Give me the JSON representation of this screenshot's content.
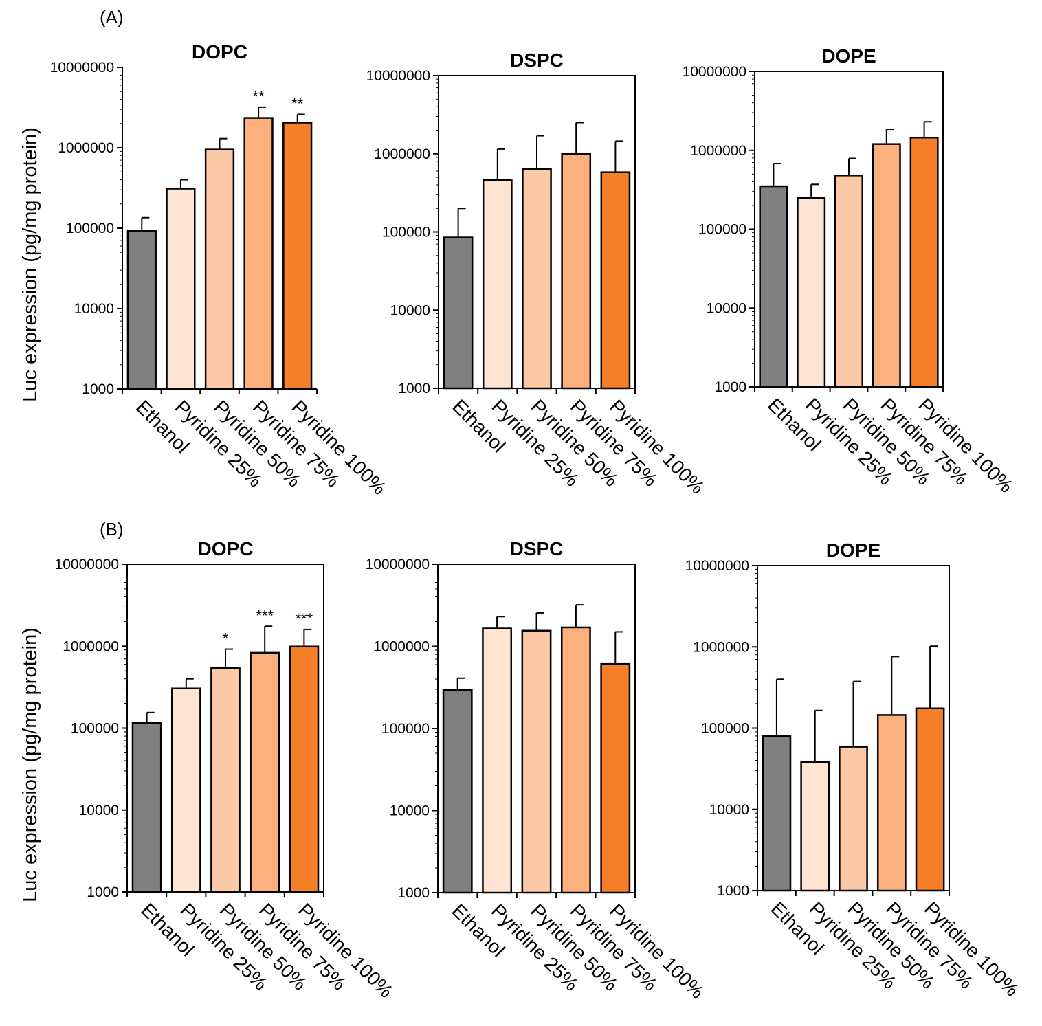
{
  "panels": [
    {
      "label": "(A)",
      "ylabel": "Luc expression (pg/mg protein)",
      "charts": [
        {
          "type": "bar",
          "title": "DOPC",
          "yscale": "log",
          "ylim": [
            1000,
            10000000
          ],
          "yticks": [
            "1000",
            "10000",
            "100000",
            "1000000",
            "10000000"
          ],
          "categories": [
            "Ethanol",
            "Pyridine 25%",
            "Pyridine 50%",
            "Pyridine 75%",
            "Pyridine 100%"
          ],
          "values": [
            92000,
            310000,
            950000,
            2350000,
            2050000
          ],
          "error_upper": [
            135000,
            400000,
            1300000,
            3200000,
            2600000
          ],
          "significance": [
            "",
            "",
            "",
            "**",
            "**"
          ],
          "box": "left-bottom",
          "colors": [
            "#808080",
            "#fde4d3",
            "#fcc9a6",
            "#fbb07e",
            "#f57f28"
          ]
        },
        {
          "type": "bar",
          "title": "DSPC",
          "yscale": "log",
          "ylim": [
            1000,
            10000000
          ],
          "yticks": [
            "1000",
            "10000",
            "100000",
            "1000000",
            "10000000"
          ],
          "categories": [
            "Ethanol",
            "Pyridine 25%",
            "Pyridine 50%",
            "Pyridine 75%",
            "Pyridine 100%"
          ],
          "values": [
            85000,
            460000,
            640000,
            990000,
            580000
          ],
          "error_upper": [
            200000,
            1150000,
            1700000,
            2500000,
            1450000
          ],
          "significance": [
            "",
            "",
            "",
            "",
            ""
          ],
          "box": "full",
          "colors": [
            "#808080",
            "#fde4d3",
            "#fcc9a6",
            "#fbb07e",
            "#f57f28"
          ]
        },
        {
          "type": "bar",
          "title": "DOPE",
          "yscale": "log",
          "ylim": [
            1000,
            10000000
          ],
          "yticks": [
            "1000",
            "10000",
            "100000",
            "1000000",
            "10000000"
          ],
          "categories": [
            "Ethanol",
            "Pyridine 25%",
            "Pyridine 50%",
            "Pyridine 75%",
            "Pyridine 100%"
          ],
          "values": [
            350000,
            250000,
            480000,
            1200000,
            1450000
          ],
          "error_upper": [
            680000,
            370000,
            790000,
            1850000,
            2300000
          ],
          "significance": [
            "",
            "",
            "",
            "",
            ""
          ],
          "box": "full",
          "colors": [
            "#808080",
            "#fde4d3",
            "#fcc9a6",
            "#fbb07e",
            "#f57f28"
          ]
        }
      ]
    },
    {
      "label": "(B)",
      "ylabel": "Luc expression (pg/mg protein)",
      "charts": [
        {
          "type": "bar",
          "title": "DOPC",
          "yscale": "log",
          "ylim": [
            1000,
            10000000
          ],
          "yticks": [
            "1000",
            "10000",
            "100000",
            "1000000",
            "10000000"
          ],
          "categories": [
            "Ethanol",
            "Pyridine 25%",
            "Pyridine 50%",
            "Pyridine 75%",
            "Pyridine 100%"
          ],
          "values": [
            115000,
            305000,
            540000,
            830000,
            990000
          ],
          "error_upper": [
            155000,
            400000,
            920000,
            1750000,
            1600000
          ],
          "significance": [
            "",
            "",
            "*",
            "***",
            "***"
          ],
          "box": "full",
          "colors": [
            "#808080",
            "#fde4d3",
            "#fcc9a6",
            "#fbb07e",
            "#f57f28"
          ]
        },
        {
          "type": "bar",
          "title": "DSPC",
          "yscale": "log",
          "ylim": [
            1000,
            10000000
          ],
          "yticks": [
            "1000",
            "10000",
            "100000",
            "1000000",
            "10000000"
          ],
          "categories": [
            "Ethanol",
            "Pyridine 25%",
            "Pyridine 50%",
            "Pyridine 75%",
            "Pyridine 100%"
          ],
          "values": [
            295000,
            1650000,
            1550000,
            1700000,
            610000
          ],
          "error_upper": [
            410000,
            2300000,
            2550000,
            3200000,
            1500000
          ],
          "significance": [
            "",
            "",
            "",
            "",
            ""
          ],
          "box": "full",
          "colors": [
            "#808080",
            "#fde4d3",
            "#fcc9a6",
            "#fbb07e",
            "#f57f28"
          ]
        },
        {
          "type": "bar",
          "title": "DOPE",
          "yscale": "log",
          "ylim": [
            1000,
            10000000
          ],
          "yticks": [
            "1000",
            "10000",
            "100000",
            "1000000",
            "10000000"
          ],
          "categories": [
            "Ethanol",
            "Pyridine 25%",
            "Pyridine 50%",
            "Pyridine 75%",
            "Pyridine 100%"
          ],
          "values": [
            80000,
            38000,
            59000,
            145000,
            175000
          ],
          "error_upper": [
            400000,
            165000,
            375000,
            760000,
            1020000
          ],
          "significance": [
            "",
            "",
            "",
            "",
            ""
          ],
          "box": "full",
          "colors": [
            "#808080",
            "#fde4d3",
            "#fcc9a6",
            "#fbb07e",
            "#f57f28"
          ]
        }
      ]
    }
  ]
}
